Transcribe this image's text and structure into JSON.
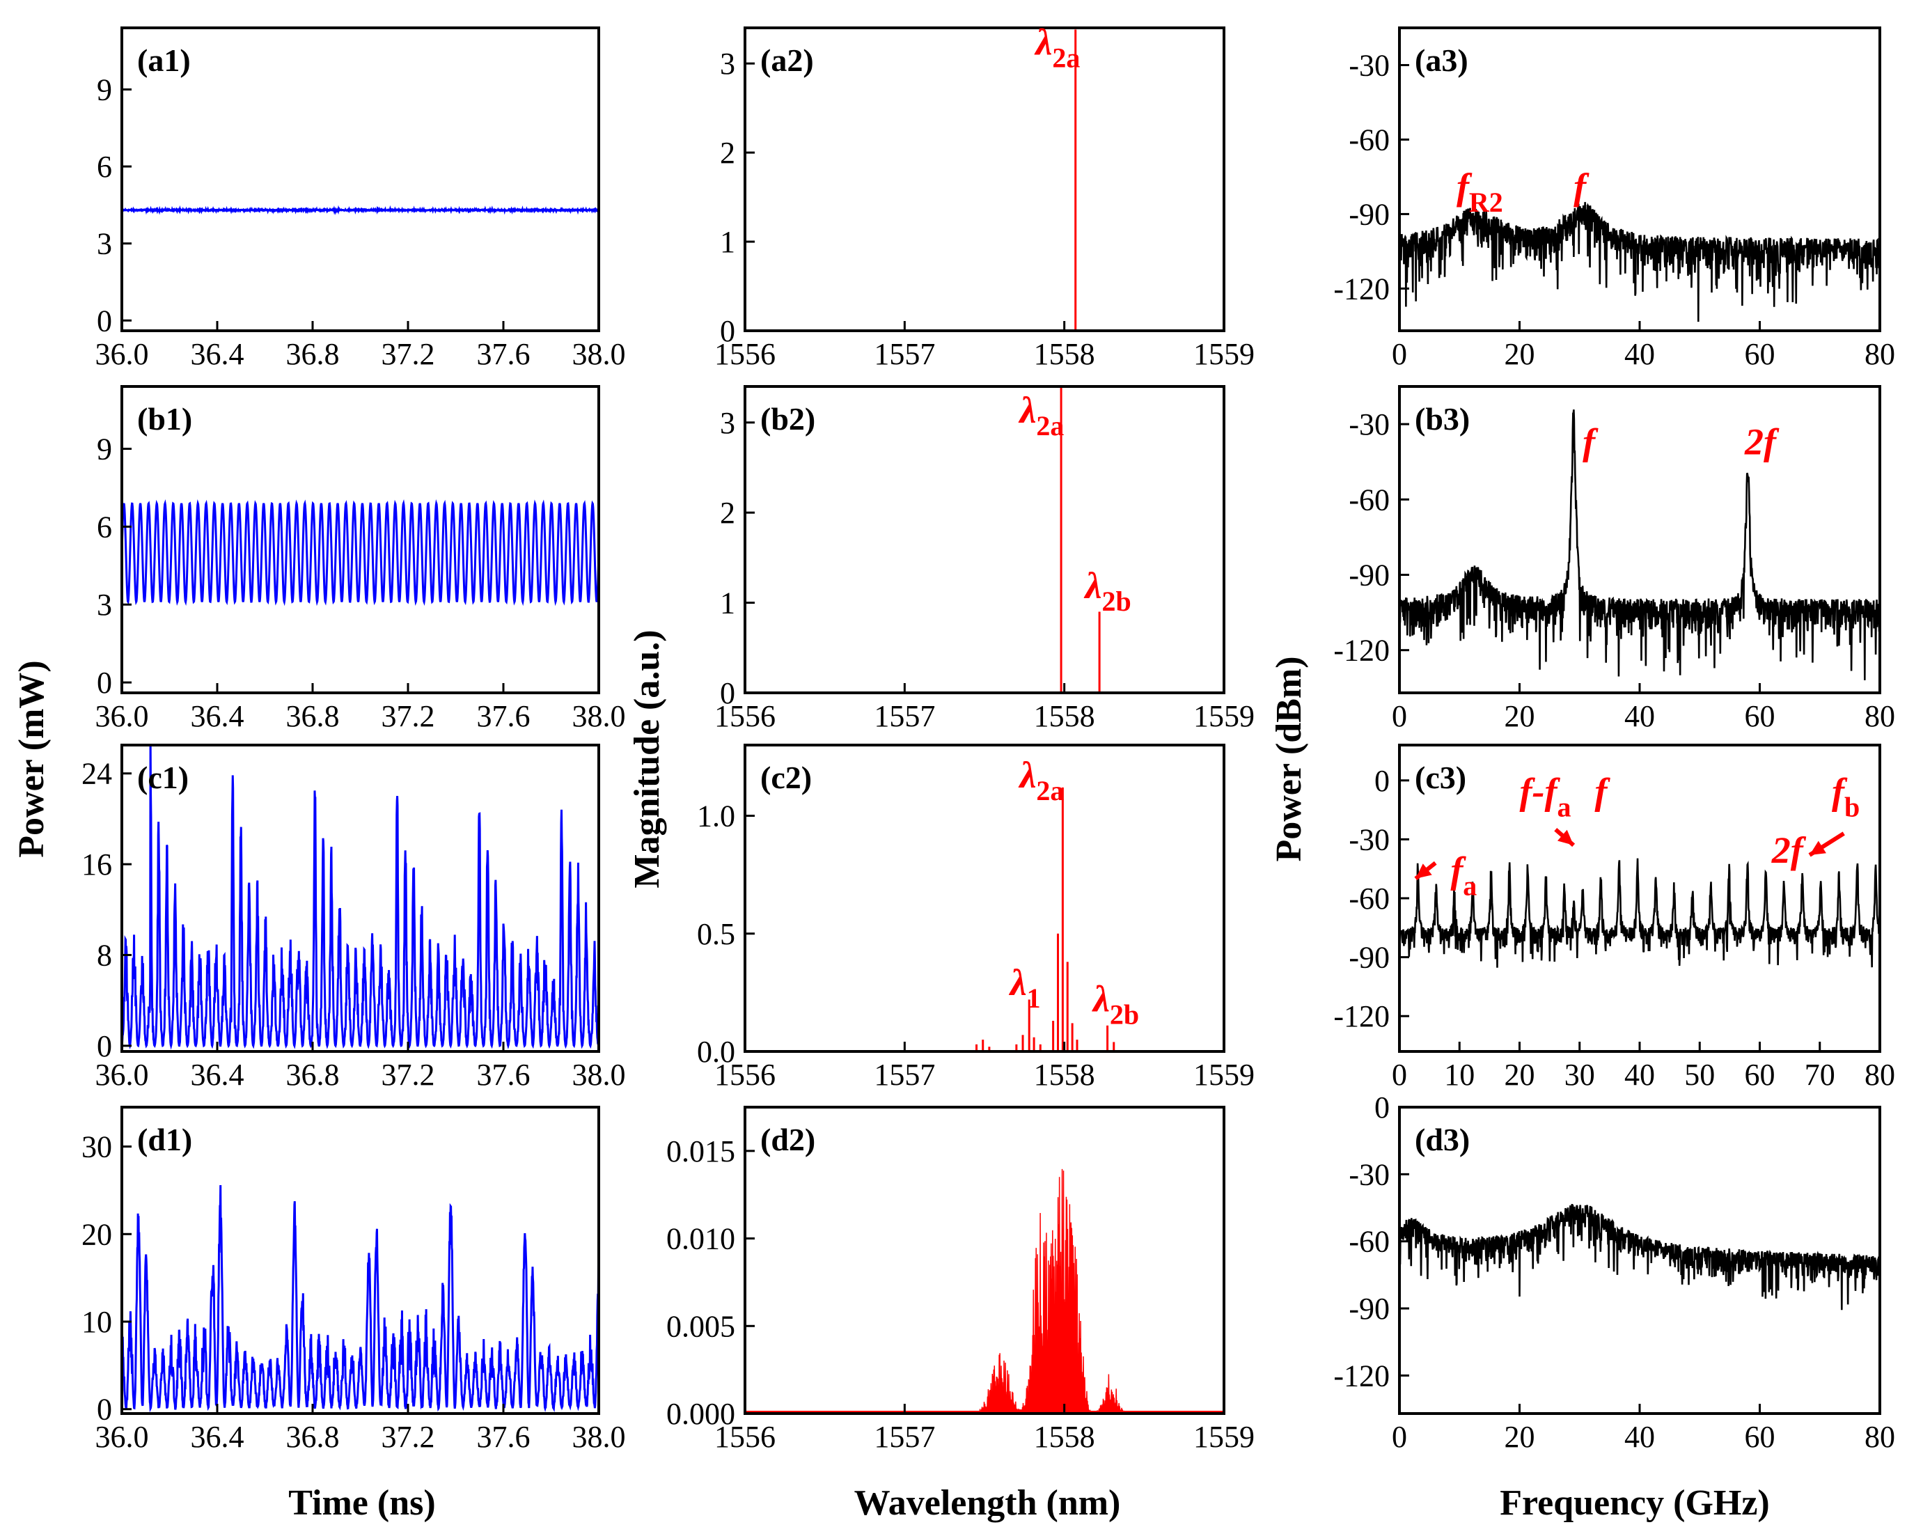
{
  "colors": {
    "time": "#0000ff",
    "optical": "#ff0000",
    "rf": "#000000",
    "annotation": "#ff0000"
  },
  "axis_labels": {
    "time_x": "Time (ns)",
    "wavelength_x": "Wavelength (nm)",
    "frequency_x": "Frequency (GHz)",
    "power_mw_y": "Power (mW)",
    "magnitude_y": "Magnitude (a.u.)",
    "power_dbm_y": "Power (dBm)"
  },
  "chart_data": [
    {
      "id": "a1",
      "panel_label": "(a1)",
      "type": "line",
      "kind": "time",
      "xlabel": "Time (ns)",
      "ylabel": "Power (mW)",
      "xlim": [
        36.0,
        38.0
      ],
      "ylim": [
        -0.4,
        11.4
      ],
      "xticks": [
        "36.0",
        "36.4",
        "36.8",
        "37.2",
        "37.6",
        "38.0"
      ],
      "yticks": [
        "0",
        "3",
        "6",
        "9"
      ],
      "series": [
        {
          "name": "intensity",
          "pattern": "cw",
          "level": 4.3,
          "noise": 0.04
        }
      ]
    },
    {
      "id": "a2",
      "panel_label": "(a2)",
      "type": "bar",
      "kind": "optical",
      "xlabel": "Wavelength (nm)",
      "ylabel": "Magnitude (a.u.)",
      "xlim": [
        1556,
        1559
      ],
      "ylim": [
        0,
        3.4
      ],
      "xticks": [
        "1556",
        "1557",
        "1558",
        "1559"
      ],
      "yticks": [
        "0",
        "1",
        "2",
        "3"
      ],
      "lines": [
        {
          "x": 1558.07,
          "y": 3.38
        }
      ],
      "annotations": [
        {
          "sym": "λ",
          "sub": "2a",
          "x": 1557.82,
          "y": 3.1
        }
      ]
    },
    {
      "id": "a3",
      "panel_label": "(a3)",
      "type": "line",
      "kind": "rf",
      "xlabel": "Frequency (GHz)",
      "ylabel": "Power (dBm)",
      "xlim": [
        0,
        80
      ],
      "ylim": [
        -137,
        -15
      ],
      "xticks": [
        "0",
        "20",
        "40",
        "60",
        "80"
      ],
      "yticks": [
        "-30",
        "-60",
        "-90",
        "-120"
      ],
      "series": [
        {
          "name": "rf",
          "floor": -106,
          "spread": 14,
          "peaks": [
            {
              "f": 12.5,
              "h": 12,
              "w": 5
            },
            {
              "f": 30.5,
              "h": 14,
              "w": 3.5
            }
          ]
        }
      ],
      "annotations": [
        {
          "sym": "f",
          "sub": "R2",
          "x": 9.5,
          "y": -84
        },
        {
          "sym": "f",
          "sub": "",
          "x": 29,
          "y": -84
        }
      ]
    },
    {
      "id": "b1",
      "panel_label": "(b1)",
      "type": "line",
      "kind": "time",
      "xlabel": "Time (ns)",
      "ylabel": "Power (mW)",
      "xlim": [
        36.0,
        38.0
      ],
      "ylim": [
        -0.4,
        11.4
      ],
      "xticks": [
        "36.0",
        "36.4",
        "36.8",
        "37.2",
        "37.6",
        "38.0"
      ],
      "yticks": [
        "0",
        "3",
        "6",
        "9"
      ],
      "series": [
        {
          "name": "intensity",
          "pattern": "sine",
          "mean": 5.0,
          "amp": 1.9,
          "freq_ghz": 29
        }
      ]
    },
    {
      "id": "b2",
      "panel_label": "(b2)",
      "type": "bar",
      "kind": "optical",
      "xlabel": "Wavelength (nm)",
      "ylabel": "Magnitude (a.u.)",
      "xlim": [
        1556,
        1559
      ],
      "ylim": [
        0,
        3.4
      ],
      "xticks": [
        "1556",
        "1557",
        "1558",
        "1559"
      ],
      "yticks": [
        "0",
        "1",
        "2",
        "3"
      ],
      "lines": [
        {
          "x": 1557.98,
          "y": 3.42
        },
        {
          "x": 1558.22,
          "y": 0.9
        }
      ],
      "annotations": [
        {
          "sym": "λ",
          "sub": "2a",
          "x": 1557.72,
          "y": 3.0
        },
        {
          "sym": "λ",
          "sub": "2b",
          "x": 1558.13,
          "y": 1.05
        }
      ]
    },
    {
      "id": "b3",
      "panel_label": "(b3)",
      "type": "line",
      "kind": "rf",
      "xlabel": "Frequency (GHz)",
      "ylabel": "Power (dBm)",
      "xlim": [
        0,
        80
      ],
      "ylim": [
        -137,
        -15
      ],
      "xticks": [
        "0",
        "20",
        "40",
        "60",
        "80"
      ],
      "yticks": [
        "-30",
        "-60",
        "-90",
        "-120"
      ],
      "series": [
        {
          "name": "rf",
          "floor": -106,
          "spread": 14,
          "peaks": [
            {
              "f": 12.5,
              "h": 14,
              "w": 2.5
            },
            {
              "f": 29,
              "h": 78,
              "w": 0.45
            },
            {
              "f": 58,
              "h": 57,
              "w": 0.4
            }
          ]
        }
      ],
      "annotations": [
        {
          "sym": "f",
          "sub": "",
          "x": 30.5,
          "y": -42
        },
        {
          "sym": "2",
          "sym2": "f",
          "sub": "",
          "x": 57.5,
          "y": -42
        }
      ]
    },
    {
      "id": "c1",
      "panel_label": "(c1)",
      "type": "line",
      "kind": "time",
      "xlabel": "Time (ns)",
      "ylabel": "Power (mW)",
      "xlim": [
        36.0,
        38.0
      ],
      "ylim": [
        -0.5,
        26.5
      ],
      "xticks": [
        "36.0",
        "36.4",
        "36.8",
        "37.2",
        "37.6",
        "38.0"
      ],
      "yticks": [
        "0",
        "8",
        "16",
        "24"
      ],
      "series": [
        {
          "name": "intensity",
          "pattern": "burst",
          "base": 5,
          "period_ns": 0.34,
          "peak": 23,
          "freq_ghz": 29
        }
      ]
    },
    {
      "id": "c2",
      "panel_label": "(c2)",
      "type": "bar",
      "kind": "optical",
      "xlabel": "Wavelength (nm)",
      "ylabel": "Magnitude (a.u.)",
      "xlim": [
        1556,
        1559
      ],
      "ylim": [
        0,
        1.3
      ],
      "xticks": [
        "1556",
        "1557",
        "1558",
        "1559"
      ],
      "yticks": [
        "0.0",
        "0.5",
        "1.0"
      ],
      "lines": [
        {
          "x": 1557.45,
          "y": 0.03
        },
        {
          "x": 1557.49,
          "y": 0.05
        },
        {
          "x": 1557.53,
          "y": 0.02
        },
        {
          "x": 1557.7,
          "y": 0.03
        },
        {
          "x": 1557.74,
          "y": 0.07
        },
        {
          "x": 1557.78,
          "y": 0.22
        },
        {
          "x": 1557.81,
          "y": 0.06
        },
        {
          "x": 1557.85,
          "y": 0.03
        },
        {
          "x": 1557.93,
          "y": 0.13
        },
        {
          "x": 1557.96,
          "y": 0.5
        },
        {
          "x": 1557.99,
          "y": 1.12
        },
        {
          "x": 1558.02,
          "y": 0.38
        },
        {
          "x": 1558.05,
          "y": 0.12
        },
        {
          "x": 1558.08,
          "y": 0.05
        },
        {
          "x": 1558.27,
          "y": 0.11
        },
        {
          "x": 1558.31,
          "y": 0.04
        }
      ],
      "annotations": [
        {
          "sym": "λ",
          "sub": "2a",
          "x": 1557.72,
          "y": 1.12
        },
        {
          "sym": "λ",
          "sub": "1",
          "x": 1557.66,
          "y": 0.24
        },
        {
          "sym": "λ",
          "sub": "2b",
          "x": 1558.18,
          "y": 0.17
        }
      ]
    },
    {
      "id": "c3",
      "panel_label": "(c3)",
      "type": "line",
      "kind": "rf",
      "xlabel": "Frequency (GHz)",
      "ylabel": "Power (dBm)",
      "xlim": [
        0,
        80
      ],
      "ylim": [
        -138,
        18
      ],
      "xticks": [
        "0",
        "10",
        "20",
        "30",
        "40",
        "50",
        "60",
        "70",
        "80"
      ],
      "yticks": [
        "0",
        "-30",
        "-60",
        "-90",
        "-120"
      ],
      "series": [
        {
          "name": "rf",
          "floor": -80,
          "spread": 10,
          "comb_spacing": 3.05,
          "comb_height": 38,
          "comb_width": 0.18,
          "peaks": [
            {
              "f": 29,
              "h": 16,
              "w": 0.2
            },
            {
              "f": 67,
              "h": 8,
              "w": 0.2
            }
          ]
        }
      ],
      "annotations": [
        {
          "sym": "f",
          "sub": "a",
          "x": 8.5,
          "y": -52
        },
        {
          "sym": "f",
          "sub": "",
          "sym2": "-f",
          "sub2": "a",
          "x": 20,
          "y": -12
        },
        {
          "sym": "f",
          "sub": "",
          "x": 32.5,
          "y": -12
        },
        {
          "sym": "2",
          "sym2": "f",
          "sub": "",
          "x": 62,
          "y": -42
        },
        {
          "sym": "f",
          "sub": "b",
          "x": 72,
          "y": -12
        }
      ],
      "arrows": [
        {
          "from": [
            6,
            -42
          ],
          "to": [
            2.7,
            -50
          ]
        },
        {
          "from": [
            26,
            -25
          ],
          "to": [
            29,
            -33
          ]
        },
        {
          "from": [
            74,
            -27
          ],
          "to": [
            68.3,
            -38
          ]
        }
      ]
    },
    {
      "id": "d1",
      "panel_label": "(d1)",
      "type": "line",
      "kind": "time",
      "xlabel": "Time (ns)",
      "ylabel": "Power (mW)",
      "xlim": [
        36.0,
        38.0
      ],
      "ylim": [
        -0.5,
        34.5
      ],
      "xticks": [
        "36.0",
        "36.4",
        "36.8",
        "37.2",
        "37.6",
        "38.0"
      ],
      "yticks": [
        "0",
        "10",
        "20",
        "30"
      ],
      "series": [
        {
          "name": "intensity",
          "pattern": "chaos",
          "base": 4,
          "peak": 27,
          "freq_ghz": 29
        }
      ]
    },
    {
      "id": "d2",
      "panel_label": "(d2)",
      "type": "area",
      "kind": "optical-broad",
      "xlabel": "Wavelength (nm)",
      "ylabel": "Magnitude (a.u.)",
      "xlim": [
        1556,
        1559
      ],
      "ylim": [
        0,
        0.0175
      ],
      "xticks": [
        "1556",
        "1557",
        "1558",
        "1559"
      ],
      "yticks": [
        "0.000",
        "0.005",
        "0.010",
        "0.015"
      ],
      "series": [
        {
          "name": "spectrum",
          "lobes": [
            {
              "c": 1557.6,
              "h": 0.0035,
              "w": 0.08
            },
            {
              "c": 1557.85,
              "h": 0.012,
              "w": 0.06
            },
            {
              "c": 1557.98,
              "h": 0.015,
              "w": 0.07
            },
            {
              "c": 1558.07,
              "h": 0.009,
              "w": 0.05
            },
            {
              "c": 1558.29,
              "h": 0.0025,
              "w": 0.05
            }
          ]
        }
      ]
    },
    {
      "id": "d3",
      "panel_label": "(d3)",
      "type": "line",
      "kind": "rf",
      "xlabel": "Frequency (GHz)",
      "ylabel": "Power (dBm)",
      "xlim": [
        0,
        80
      ],
      "ylim": [
        -137,
        0
      ],
      "xticks": [
        "0",
        "20",
        "40",
        "60",
        "80"
      ],
      "yticks": [
        "0",
        "-30",
        "-60",
        "-90",
        "-120"
      ],
      "series": [
        {
          "name": "rf",
          "floor": -66,
          "spread": 12,
          "tilt": -6,
          "peaks": [
            {
              "f": 2,
              "h": 10,
              "w": 3
            },
            {
              "f": 30,
              "h": 20,
              "w": 7
            }
          ]
        }
      ]
    }
  ]
}
